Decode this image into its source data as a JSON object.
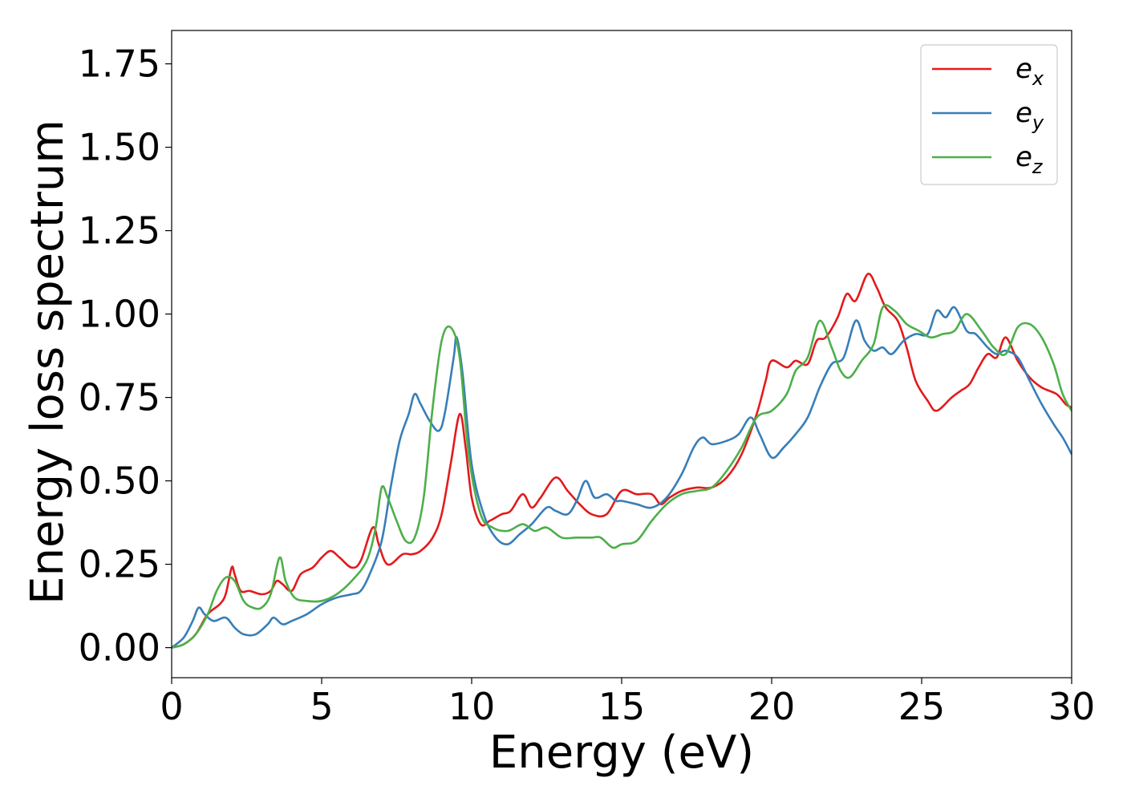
{
  "chart_data": {
    "type": "line",
    "title": "",
    "xlabel": "Energy (eV)",
    "ylabel": "Energy loss spectrum",
    "xlim": [
      0,
      30
    ],
    "ylim": [
      -0.09,
      1.85
    ],
    "xticks": [
      0,
      5,
      10,
      15,
      20,
      25,
      30
    ],
    "yticks": [
      0.0,
      0.25,
      0.5,
      0.75,
      1.0,
      1.25,
      1.5,
      1.75
    ],
    "xtick_labels": [
      "0",
      "5",
      "10",
      "15",
      "20",
      "25",
      "30"
    ],
    "ytick_labels": [
      "0.00",
      "0.25",
      "0.50",
      "0.75",
      "1.00",
      "1.25",
      "1.50",
      "1.75"
    ],
    "grid": false,
    "legend_position": "upper right",
    "series": [
      {
        "name": "e",
        "subscript": "x",
        "color": "#e41a1c",
        "points": [
          [
            0,
            0.0
          ],
          [
            0.4,
            0.01
          ],
          [
            0.8,
            0.04
          ],
          [
            1.2,
            0.1
          ],
          [
            1.6,
            0.13
          ],
          [
            1.8,
            0.16
          ],
          [
            2.0,
            0.24
          ],
          [
            2.1,
            0.22
          ],
          [
            2.3,
            0.17
          ],
          [
            2.6,
            0.17
          ],
          [
            3.0,
            0.16
          ],
          [
            3.3,
            0.17
          ],
          [
            3.5,
            0.2
          ],
          [
            3.7,
            0.19
          ],
          [
            4.0,
            0.17
          ],
          [
            4.3,
            0.22
          ],
          [
            4.7,
            0.24
          ],
          [
            5.0,
            0.27
          ],
          [
            5.3,
            0.29
          ],
          [
            5.6,
            0.27
          ],
          [
            6.0,
            0.24
          ],
          [
            6.3,
            0.26
          ],
          [
            6.7,
            0.36
          ],
          [
            6.9,
            0.31
          ],
          [
            7.1,
            0.26
          ],
          [
            7.3,
            0.25
          ],
          [
            7.7,
            0.28
          ],
          [
            8.0,
            0.28
          ],
          [
            8.3,
            0.29
          ],
          [
            8.7,
            0.33
          ],
          [
            9.0,
            0.4
          ],
          [
            9.3,
            0.55
          ],
          [
            9.6,
            0.7
          ],
          [
            9.8,
            0.6
          ],
          [
            10.0,
            0.45
          ],
          [
            10.3,
            0.37
          ],
          [
            10.6,
            0.38
          ],
          [
            11.0,
            0.4
          ],
          [
            11.3,
            0.41
          ],
          [
            11.7,
            0.46
          ],
          [
            12.0,
            0.42
          ],
          [
            12.3,
            0.45
          ],
          [
            12.8,
            0.51
          ],
          [
            13.2,
            0.47
          ],
          [
            13.6,
            0.43
          ],
          [
            14.0,
            0.4
          ],
          [
            14.5,
            0.4
          ],
          [
            15.0,
            0.47
          ],
          [
            15.5,
            0.46
          ],
          [
            16.0,
            0.46
          ],
          [
            16.3,
            0.43
          ],
          [
            16.6,
            0.45
          ],
          [
            17.0,
            0.47
          ],
          [
            17.5,
            0.48
          ],
          [
            18.0,
            0.48
          ],
          [
            18.5,
            0.51
          ],
          [
            19.0,
            0.58
          ],
          [
            19.5,
            0.7
          ],
          [
            19.8,
            0.8
          ],
          [
            20.0,
            0.86
          ],
          [
            20.5,
            0.84
          ],
          [
            20.8,
            0.86
          ],
          [
            21.2,
            0.85
          ],
          [
            21.5,
            0.92
          ],
          [
            21.8,
            0.93
          ],
          [
            22.2,
            0.99
          ],
          [
            22.5,
            1.06
          ],
          [
            22.8,
            1.04
          ],
          [
            23.2,
            1.12
          ],
          [
            23.5,
            1.08
          ],
          [
            23.8,
            1.02
          ],
          [
            24.2,
            0.98
          ],
          [
            24.5,
            0.9
          ],
          [
            24.8,
            0.8
          ],
          [
            25.2,
            0.74
          ],
          [
            25.5,
            0.71
          ],
          [
            26.0,
            0.75
          ],
          [
            26.3,
            0.77
          ],
          [
            26.6,
            0.79
          ],
          [
            26.9,
            0.84
          ],
          [
            27.2,
            0.88
          ],
          [
            27.5,
            0.87
          ],
          [
            27.8,
            0.93
          ],
          [
            28.2,
            0.86
          ],
          [
            28.6,
            0.81
          ],
          [
            29.0,
            0.78
          ],
          [
            29.5,
            0.76
          ],
          [
            29.8,
            0.73
          ],
          [
            30.0,
            0.72
          ]
        ]
      },
      {
        "name": "e",
        "subscript": "y",
        "color": "#377eb8",
        "points": [
          [
            0,
            0.0
          ],
          [
            0.4,
            0.03
          ],
          [
            0.7,
            0.08
          ],
          [
            0.9,
            0.12
          ],
          [
            1.1,
            0.1
          ],
          [
            1.4,
            0.08
          ],
          [
            1.8,
            0.09
          ],
          [
            2.1,
            0.06
          ],
          [
            2.4,
            0.04
          ],
          [
            2.8,
            0.04
          ],
          [
            3.2,
            0.07
          ],
          [
            3.4,
            0.09
          ],
          [
            3.7,
            0.07
          ],
          [
            4.0,
            0.08
          ],
          [
            4.5,
            0.1
          ],
          [
            5.0,
            0.13
          ],
          [
            5.5,
            0.15
          ],
          [
            6.0,
            0.16
          ],
          [
            6.3,
            0.17
          ],
          [
            6.6,
            0.22
          ],
          [
            7.0,
            0.32
          ],
          [
            7.3,
            0.48
          ],
          [
            7.6,
            0.62
          ],
          [
            7.9,
            0.7
          ],
          [
            8.1,
            0.76
          ],
          [
            8.3,
            0.73
          ],
          [
            8.6,
            0.68
          ],
          [
            8.9,
            0.65
          ],
          [
            9.1,
            0.7
          ],
          [
            9.4,
            0.87
          ],
          [
            9.5,
            0.93
          ],
          [
            9.7,
            0.82
          ],
          [
            10.0,
            0.55
          ],
          [
            10.4,
            0.4
          ],
          [
            10.8,
            0.33
          ],
          [
            11.2,
            0.31
          ],
          [
            11.6,
            0.34
          ],
          [
            12.0,
            0.37
          ],
          [
            12.5,
            0.42
          ],
          [
            12.8,
            0.41
          ],
          [
            13.2,
            0.4
          ],
          [
            13.5,
            0.44
          ],
          [
            13.8,
            0.5
          ],
          [
            14.1,
            0.45
          ],
          [
            14.5,
            0.46
          ],
          [
            14.8,
            0.44
          ],
          [
            15.0,
            0.44
          ],
          [
            15.5,
            0.43
          ],
          [
            16.0,
            0.42
          ],
          [
            16.5,
            0.45
          ],
          [
            17.0,
            0.52
          ],
          [
            17.4,
            0.6
          ],
          [
            17.7,
            0.63
          ],
          [
            18.0,
            0.61
          ],
          [
            18.5,
            0.62
          ],
          [
            18.9,
            0.64
          ],
          [
            19.3,
            0.69
          ],
          [
            19.6,
            0.64
          ],
          [
            20.0,
            0.57
          ],
          [
            20.4,
            0.6
          ],
          [
            20.8,
            0.64
          ],
          [
            21.2,
            0.69
          ],
          [
            21.6,
            0.78
          ],
          [
            22.0,
            0.85
          ],
          [
            22.4,
            0.87
          ],
          [
            22.8,
            0.98
          ],
          [
            23.1,
            0.92
          ],
          [
            23.4,
            0.89
          ],
          [
            23.7,
            0.9
          ],
          [
            24.0,
            0.88
          ],
          [
            24.4,
            0.92
          ],
          [
            24.8,
            0.94
          ],
          [
            25.2,
            0.94
          ],
          [
            25.5,
            1.01
          ],
          [
            25.8,
            0.99
          ],
          [
            26.1,
            1.02
          ],
          [
            26.5,
            0.95
          ],
          [
            26.8,
            0.94
          ],
          [
            27.2,
            0.9
          ],
          [
            27.5,
            0.88
          ],
          [
            27.8,
            0.89
          ],
          [
            28.2,
            0.87
          ],
          [
            28.6,
            0.8
          ],
          [
            29.0,
            0.73
          ],
          [
            29.4,
            0.67
          ],
          [
            29.7,
            0.63
          ],
          [
            30.0,
            0.58
          ]
        ]
      },
      {
        "name": "e",
        "subscript": "z",
        "color": "#4daf4a",
        "points": [
          [
            0,
            0.0
          ],
          [
            0.4,
            0.01
          ],
          [
            0.8,
            0.04
          ],
          [
            1.2,
            0.1
          ],
          [
            1.5,
            0.17
          ],
          [
            1.8,
            0.21
          ],
          [
            2.1,
            0.2
          ],
          [
            2.4,
            0.14
          ],
          [
            2.7,
            0.12
          ],
          [
            3.0,
            0.12
          ],
          [
            3.3,
            0.16
          ],
          [
            3.6,
            0.27
          ],
          [
            3.8,
            0.2
          ],
          [
            4.1,
            0.15
          ],
          [
            4.5,
            0.14
          ],
          [
            5.0,
            0.14
          ],
          [
            5.5,
            0.16
          ],
          [
            6.0,
            0.2
          ],
          [
            6.5,
            0.26
          ],
          [
            6.8,
            0.36
          ],
          [
            7.0,
            0.48
          ],
          [
            7.2,
            0.45
          ],
          [
            7.5,
            0.38
          ],
          [
            7.8,
            0.32
          ],
          [
            8.1,
            0.33
          ],
          [
            8.4,
            0.45
          ],
          [
            8.7,
            0.72
          ],
          [
            9.0,
            0.92
          ],
          [
            9.3,
            0.96
          ],
          [
            9.6,
            0.87
          ],
          [
            9.9,
            0.58
          ],
          [
            10.3,
            0.4
          ],
          [
            10.7,
            0.36
          ],
          [
            11.2,
            0.35
          ],
          [
            11.7,
            0.37
          ],
          [
            12.1,
            0.35
          ],
          [
            12.5,
            0.36
          ],
          [
            13.0,
            0.33
          ],
          [
            13.5,
            0.33
          ],
          [
            14.0,
            0.33
          ],
          [
            14.3,
            0.33
          ],
          [
            14.7,
            0.3
          ],
          [
            15.0,
            0.31
          ],
          [
            15.5,
            0.32
          ],
          [
            16.0,
            0.38
          ],
          [
            16.5,
            0.43
          ],
          [
            17.0,
            0.46
          ],
          [
            17.5,
            0.47
          ],
          [
            18.0,
            0.48
          ],
          [
            18.5,
            0.53
          ],
          [
            19.0,
            0.6
          ],
          [
            19.5,
            0.69
          ],
          [
            20.0,
            0.71
          ],
          [
            20.5,
            0.76
          ],
          [
            20.8,
            0.83
          ],
          [
            21.2,
            0.87
          ],
          [
            21.6,
            0.98
          ],
          [
            22.0,
            0.9
          ],
          [
            22.3,
            0.83
          ],
          [
            22.6,
            0.81
          ],
          [
            23.0,
            0.86
          ],
          [
            23.4,
            0.91
          ],
          [
            23.7,
            1.02
          ],
          [
            24.1,
            1.01
          ],
          [
            24.5,
            0.97
          ],
          [
            24.9,
            0.95
          ],
          [
            25.3,
            0.93
          ],
          [
            25.7,
            0.94
          ],
          [
            26.1,
            0.95
          ],
          [
            26.5,
            1.0
          ],
          [
            27.0,
            0.95
          ],
          [
            27.4,
            0.9
          ],
          [
            27.8,
            0.88
          ],
          [
            28.2,
            0.96
          ],
          [
            28.6,
            0.97
          ],
          [
            29.0,
            0.93
          ],
          [
            29.4,
            0.85
          ],
          [
            29.7,
            0.76
          ],
          [
            30.0,
            0.71
          ]
        ]
      }
    ]
  }
}
